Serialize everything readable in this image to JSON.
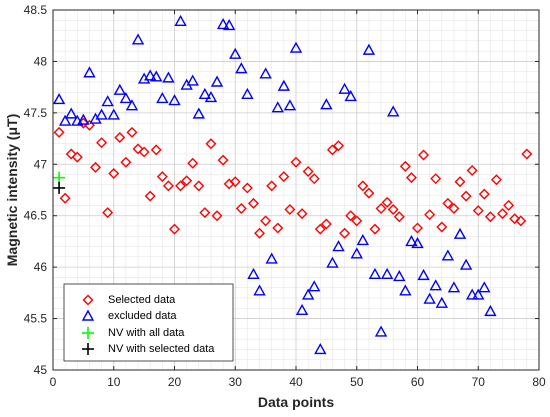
{
  "chart_data": {
    "type": "scatter",
    "title": "",
    "xlabel": "Data points",
    "ylabel": "Magnetic intensity (μT)",
    "xlim": [
      0,
      80
    ],
    "ylim": [
      45,
      48.5
    ],
    "x_ticks": [
      0,
      10,
      20,
      30,
      40,
      50,
      60,
      70,
      80
    ],
    "y_ticks": [
      45,
      45.5,
      46,
      46.5,
      47,
      47.5,
      48,
      48.5
    ],
    "grid": true,
    "minor_grid": true,
    "legend_position": "bottom-left",
    "series": [
      {
        "name": "Selected data",
        "marker": "diamond",
        "color": "#ff0000",
        "points": [
          [
            1,
            47.31
          ],
          [
            2,
            46.67
          ],
          [
            3,
            47.1
          ],
          [
            4,
            47.07
          ],
          [
            5,
            47.4
          ],
          [
            6,
            47.38
          ],
          [
            7,
            46.97
          ],
          [
            8,
            47.21
          ],
          [
            9,
            46.53
          ],
          [
            10,
            46.91
          ],
          [
            11,
            47.26
          ],
          [
            12,
            47.02
          ],
          [
            13,
            47.31
          ],
          [
            14,
            47.15
          ],
          [
            15,
            47.12
          ],
          [
            16,
            46.69
          ],
          [
            17,
            47.14
          ],
          [
            18,
            46.88
          ],
          [
            19,
            46.79
          ],
          [
            20,
            46.37
          ],
          [
            21,
            46.79
          ],
          [
            22,
            46.84
          ],
          [
            23,
            47.01
          ],
          [
            24,
            46.79
          ],
          [
            25,
            46.53
          ],
          [
            26,
            47.2
          ],
          [
            27,
            46.5
          ],
          [
            28,
            47.04
          ],
          [
            29,
            46.81
          ],
          [
            30,
            46.83
          ],
          [
            31,
            46.57
          ],
          [
            32,
            46.77
          ],
          [
            33,
            46.62
          ],
          [
            34,
            46.33
          ],
          [
            35,
            46.45
          ],
          [
            36,
            46.79
          ],
          [
            37,
            46.38
          ],
          [
            38,
            46.88
          ],
          [
            39,
            46.56
          ],
          [
            40,
            47.02
          ],
          [
            41,
            46.52
          ],
          [
            42,
            46.93
          ],
          [
            43,
            46.86
          ],
          [
            44,
            46.37
          ],
          [
            45,
            46.42
          ],
          [
            46,
            47.14
          ],
          [
            47,
            47.18
          ],
          [
            48,
            46.33
          ],
          [
            49,
            46.5
          ],
          [
            50,
            46.45
          ],
          [
            51,
            46.79
          ],
          [
            52,
            46.72
          ],
          [
            53,
            46.37
          ],
          [
            54,
            46.57
          ],
          [
            55,
            46.63
          ],
          [
            56,
            46.56
          ],
          [
            57,
            46.49
          ],
          [
            58,
            46.98
          ],
          [
            59,
            46.87
          ],
          [
            60,
            46.38
          ],
          [
            61,
            47.09
          ],
          [
            62,
            46.51
          ],
          [
            63,
            46.86
          ],
          [
            64,
            46.39
          ],
          [
            65,
            46.62
          ],
          [
            66,
            46.57
          ],
          [
            67,
            46.83
          ],
          [
            68,
            46.69
          ],
          [
            69,
            46.94
          ],
          [
            70,
            46.55
          ],
          [
            71,
            46.71
          ],
          [
            72,
            46.49
          ],
          [
            73,
            46.85
          ],
          [
            74,
            46.52
          ],
          [
            75,
            46.6
          ],
          [
            76,
            46.47
          ],
          [
            77,
            46.45
          ],
          [
            78,
            47.1
          ]
        ]
      },
      {
        "name": "excluded data",
        "marker": "triangle",
        "color": "#0000ff",
        "points": [
          [
            1,
            47.63
          ],
          [
            2,
            47.42
          ],
          [
            3,
            47.49
          ],
          [
            4,
            47.42
          ],
          [
            5,
            47.43
          ],
          [
            6,
            47.89
          ],
          [
            7,
            47.44
          ],
          [
            8,
            47.48
          ],
          [
            9,
            47.61
          ],
          [
            10,
            47.48
          ],
          [
            11,
            47.72
          ],
          [
            12,
            47.64
          ],
          [
            13,
            47.57
          ],
          [
            14,
            48.21
          ],
          [
            15,
            47.83
          ],
          [
            16,
            47.86
          ],
          [
            17,
            47.85
          ],
          [
            18,
            47.64
          ],
          [
            19,
            47.84
          ],
          [
            20,
            47.62
          ],
          [
            21,
            48.39
          ],
          [
            22,
            47.77
          ],
          [
            23,
            47.81
          ],
          [
            24,
            47.49
          ],
          [
            25,
            47.68
          ],
          [
            26,
            47.65
          ],
          [
            27,
            47.8
          ],
          [
            28,
            48.36
          ],
          [
            29,
            48.35
          ],
          [
            30,
            48.07
          ],
          [
            31,
            47.93
          ],
          [
            32,
            47.68
          ],
          [
            33,
            45.93
          ],
          [
            34,
            45.77
          ],
          [
            35,
            47.88
          ],
          [
            36,
            46.08
          ],
          [
            37,
            47.55
          ],
          [
            38,
            47.76
          ],
          [
            39,
            47.57
          ],
          [
            40,
            48.13
          ],
          [
            41,
            45.58
          ],
          [
            42,
            45.73
          ],
          [
            43,
            45.81
          ],
          [
            44,
            45.2
          ],
          [
            45,
            47.58
          ],
          [
            46,
            46.04
          ],
          [
            47,
            46.2
          ],
          [
            48,
            47.73
          ],
          [
            49,
            47.66
          ],
          [
            50,
            46.13
          ],
          [
            51,
            46.26
          ],
          [
            52,
            48.11
          ],
          [
            53,
            45.93
          ],
          [
            54,
            45.37
          ],
          [
            55,
            45.93
          ],
          [
            56,
            47.51
          ],
          [
            57,
            45.91
          ],
          [
            58,
            45.77
          ],
          [
            59,
            46.25
          ],
          [
            60,
            46.23
          ],
          [
            61,
            45.92
          ],
          [
            62,
            45.69
          ],
          [
            63,
            45.82
          ],
          [
            64,
            45.65
          ],
          [
            65,
            46.11
          ],
          [
            66,
            45.8
          ],
          [
            67,
            46.32
          ],
          [
            68,
            46.02
          ],
          [
            69,
            45.73
          ],
          [
            70,
            45.73
          ],
          [
            71,
            45.8
          ],
          [
            72,
            45.57
          ]
        ]
      },
      {
        "name": "NV with all data",
        "marker": "plus",
        "color": "#00ff00",
        "points": [
          [
            1,
            46.87
          ]
        ]
      },
      {
        "name": "NV with selected data",
        "marker": "plus",
        "color": "#000000",
        "points": [
          [
            1,
            46.77
          ]
        ]
      }
    ]
  }
}
